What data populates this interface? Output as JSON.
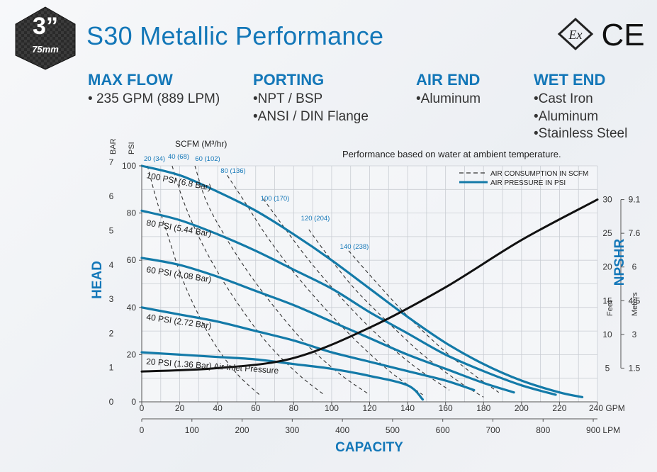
{
  "badge": {
    "size": "3”",
    "metric": "75mm"
  },
  "title": "S30 Metallic Performance",
  "certifications": {
    "ex": "Ex",
    "ce": "CE"
  },
  "specs": [
    {
      "heading": "MAX FLOW",
      "items": [
        "235 GPM (889 LPM)"
      ]
    },
    {
      "heading": "PORTING",
      "items": [
        "NPT / BSP",
        "ANSI / DIN Flange"
      ]
    },
    {
      "heading": "AIR END",
      "items": [
        "Aluminum"
      ]
    },
    {
      "heading": "WET END",
      "items": [
        "Cast Iron",
        "Aluminum",
        "Stainless Steel"
      ]
    }
  ],
  "bullet": "•",
  "colors": {
    "accent": "#1377b8",
    "pressure_curve": "#137aa8",
    "npshr_curve": "#111111",
    "scfm_curve": "#333333"
  },
  "chart_data": {
    "type": "line",
    "note": "Performance based on water at ambient temperature.",
    "xlabel": "CAPACITY",
    "ylabel": "HEAD",
    "y2label": "NPSHR",
    "x_gpm": {
      "ticks": [
        "0",
        "20",
        "40",
        "60",
        "80",
        "100",
        "120",
        "140",
        "160",
        "180",
        "200",
        "220",
        "240 GPM"
      ],
      "range": [
        0,
        240
      ]
    },
    "x_lpm": {
      "ticks": [
        "0",
        "100",
        "200",
        "300",
        "400",
        "500",
        "600",
        "700",
        "800",
        "900 LPM"
      ]
    },
    "y_psi": {
      "label": "PSI",
      "ticks": [
        "0",
        "20",
        "40",
        "60",
        "80",
        "100"
      ],
      "range": [
        0,
        100
      ]
    },
    "y_bar": {
      "label": "BAR",
      "ticks": [
        "0",
        "1",
        "2",
        "3",
        "4",
        "5",
        "6",
        "7"
      ]
    },
    "npshr_feet": {
      "label": "Feet",
      "ticks": [
        "5",
        "10",
        "15",
        "20",
        "25",
        "30"
      ]
    },
    "npshr_meters": {
      "label": "Meters",
      "ticks": [
        "1.5",
        "3",
        "4.5",
        "6",
        "7.6",
        "9.1"
      ]
    },
    "grid": true,
    "legend": [
      {
        "label": "AIR CONSUMPTION IN SCFM",
        "style": "dashed"
      },
      {
        "label": "AIR PRESSURE IN PSI",
        "style": "solid"
      }
    ],
    "legend_position": "top-right",
    "scfm_header": "SCFM (M³/hr)",
    "pressure_series": [
      {
        "name": "100 PSI (6.8 Bar)",
        "points": [
          [
            0,
            100
          ],
          [
            20,
            96
          ],
          [
            40,
            89
          ],
          [
            60,
            81
          ],
          [
            80,
            71
          ],
          [
            100,
            60
          ],
          [
            120,
            48
          ],
          [
            140,
            36
          ],
          [
            160,
            25
          ],
          [
            180,
            16
          ],
          [
            200,
            9
          ],
          [
            220,
            4
          ],
          [
            232,
            2
          ]
        ]
      },
      {
        "name": "80 PSI (5.44 Bar)",
        "points": [
          [
            0,
            81
          ],
          [
            20,
            77
          ],
          [
            40,
            71
          ],
          [
            60,
            64
          ],
          [
            80,
            56
          ],
          [
            100,
            48
          ],
          [
            120,
            38
          ],
          [
            140,
            29
          ],
          [
            160,
            20
          ],
          [
            180,
            13
          ],
          [
            200,
            7
          ],
          [
            218,
            3
          ]
        ]
      },
      {
        "name": "60 PSI (4.08 Bar)",
        "points": [
          [
            0,
            61
          ],
          [
            20,
            58
          ],
          [
            40,
            53
          ],
          [
            60,
            47
          ],
          [
            80,
            41
          ],
          [
            100,
            34
          ],
          [
            120,
            27
          ],
          [
            140,
            20
          ],
          [
            160,
            14
          ],
          [
            180,
            8
          ],
          [
            196,
            4
          ]
        ]
      },
      {
        "name": "40 PSI (2.72 Bar)",
        "points": [
          [
            0,
            40
          ],
          [
            20,
            37
          ],
          [
            40,
            34
          ],
          [
            60,
            30
          ],
          [
            80,
            26
          ],
          [
            100,
            21
          ],
          [
            120,
            17
          ],
          [
            140,
            13
          ],
          [
            160,
            9
          ],
          [
            175,
            5
          ]
        ]
      },
      {
        "name": "20 PSI (1.36 Bar) Air Inlet Pressure",
        "points": [
          [
            0,
            21
          ],
          [
            20,
            20
          ],
          [
            40,
            19
          ],
          [
            60,
            18
          ],
          [
            80,
            16
          ],
          [
            100,
            14
          ],
          [
            120,
            11
          ],
          [
            140,
            7
          ],
          [
            148,
            1
          ]
        ]
      }
    ],
    "scfm_series": [
      {
        "name": "20 (34)",
        "points": [
          [
            3,
            100
          ],
          [
            8,
            85
          ],
          [
            14,
            70
          ],
          [
            20,
            55
          ],
          [
            28,
            40
          ],
          [
            38,
            25
          ],
          [
            50,
            12
          ],
          [
            62,
            3
          ]
        ]
      },
      {
        "name": "40 (68)",
        "points": [
          [
            16,
            100
          ],
          [
            22,
            85
          ],
          [
            30,
            70
          ],
          [
            40,
            55
          ],
          [
            52,
            40
          ],
          [
            66,
            25
          ],
          [
            82,
            12
          ],
          [
            96,
            3
          ]
        ]
      },
      {
        "name": "60 (102)",
        "points": [
          [
            28,
            100
          ],
          [
            34,
            85
          ],
          [
            44,
            70
          ],
          [
            56,
            55
          ],
          [
            70,
            40
          ],
          [
            86,
            25
          ],
          [
            104,
            12
          ],
          [
            120,
            3
          ]
        ]
      },
      {
        "name": "80 (136)",
        "points": [
          [
            45,
            96
          ],
          [
            54,
            85
          ],
          [
            66,
            70
          ],
          [
            80,
            55
          ],
          [
            96,
            40
          ],
          [
            114,
            25
          ],
          [
            132,
            12
          ],
          [
            148,
            3
          ]
        ]
      },
      {
        "name": "100 (170)",
        "points": [
          [
            64,
            86
          ],
          [
            74,
            75
          ],
          [
            88,
            60
          ],
          [
            104,
            45
          ],
          [
            122,
            30
          ],
          [
            142,
            16
          ],
          [
            162,
            5
          ]
        ]
      },
      {
        "name": "120 (204)",
        "points": [
          [
            88,
            73
          ],
          [
            98,
            62
          ],
          [
            112,
            48
          ],
          [
            128,
            35
          ],
          [
            148,
            20
          ],
          [
            168,
            8
          ],
          [
            180,
            2
          ]
        ]
      },
      {
        "name": "140 (238)",
        "points": [
          [
            109,
            64
          ],
          [
            122,
            52
          ],
          [
            138,
            38
          ],
          [
            156,
            24
          ],
          [
            174,
            12
          ],
          [
            188,
            4
          ]
        ]
      }
    ],
    "scfm_label_texts": [
      "20 (34)",
      "40 (68)",
      "60 (102)",
      "80 (136)",
      "100 (170)",
      "120 (204)",
      "140 (238)"
    ],
    "npshr_series": {
      "name": "NPSHR",
      "points": [
        [
          0,
          4.5
        ],
        [
          40,
          5
        ],
        [
          80,
          6.5
        ],
        [
          120,
          11
        ],
        [
          160,
          17
        ],
        [
          200,
          24
        ],
        [
          240,
          30
        ]
      ]
    }
  }
}
